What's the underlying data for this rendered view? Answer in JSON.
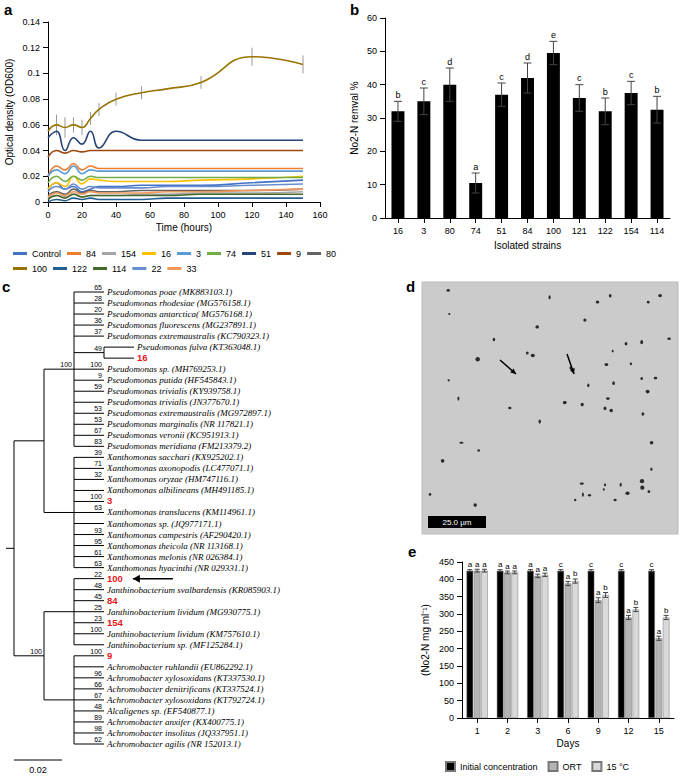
{
  "chart_data": [
    {
      "panel": "a",
      "type": "line",
      "x_label": "Time (hours)",
      "y_label": "Optical density (OD600)",
      "xlim": [
        0,
        160
      ],
      "xticks": [
        0,
        20,
        40,
        60,
        80,
        100,
        120,
        140,
        160
      ],
      "ylim": [
        0,
        0.14
      ],
      "yticks": [
        0,
        0.02,
        0.04,
        0.06,
        0.08,
        0.1,
        0.12,
        0.14
      ],
      "grid": false,
      "legend": "bottom",
      "line_style": "smooth",
      "x": [
        0,
        5,
        10,
        15,
        20,
        25,
        30,
        40,
        55,
        70,
        90,
        120,
        150
      ],
      "series": [
        {
          "name": "Control",
          "color": "#4472c4",
          "values": [
            0.01,
            0.015,
            0.01,
            0.012,
            0.008,
            0.01,
            0.012,
            0.012,
            0.013,
            0.013,
            0.013,
            0.015,
            0.017
          ]
        },
        {
          "name": "84",
          "color": "#ed7d31",
          "values": [
            0.02,
            0.028,
            0.025,
            0.03,
            0.025,
            0.028,
            0.026,
            0.026,
            0.026,
            0.026,
            0.026,
            0.026,
            0.026
          ]
        },
        {
          "name": "154",
          "color": "#a5a5a5",
          "values": [
            0.003,
            0.005,
            0.004,
            0.006,
            0.004,
            0.005,
            0.005,
            0.005,
            0.006,
            0.006,
            0.007,
            0.007,
            0.008
          ]
        },
        {
          "name": "16",
          "color": "#ffc000",
          "values": [
            0.01,
            0.015,
            0.012,
            0.02,
            0.014,
            0.018,
            0.017,
            0.016,
            0.016,
            0.016,
            0.017,
            0.018,
            0.02
          ]
        },
        {
          "name": "3",
          "color": "#5b9bd5",
          "values": [
            0.02,
            0.025,
            0.022,
            0.028,
            0.022,
            0.025,
            0.024,
            0.024,
            0.024,
            0.024,
            0.024,
            0.024,
            0.024
          ]
        },
        {
          "name": "74",
          "color": "#70ad47",
          "values": [
            0.015,
            0.02,
            0.016,
            0.02,
            0.017,
            0.02,
            0.019,
            0.019,
            0.019,
            0.019,
            0.019,
            0.019,
            0.019
          ]
        },
        {
          "name": "51",
          "color": "#264478",
          "values": [
            0.05,
            0.055,
            0.04,
            0.05,
            0.045,
            0.055,
            0.042,
            0.055,
            0.048,
            0.048,
            0.048,
            0.048,
            0.048
          ]
        },
        {
          "name": "9",
          "color": "#9e480e",
          "values": [
            0.035,
            0.04,
            0.038,
            0.04,
            0.039,
            0.04,
            0.04,
            0.04,
            0.04,
            0.04,
            0.04,
            0.04,
            0.04
          ]
        },
        {
          "name": "80",
          "color": "#636363",
          "values": [
            0.005,
            0.008,
            0.006,
            0.01,
            0.007,
            0.009,
            0.008,
            0.008,
            0.009,
            0.009,
            0.009,
            0.009,
            0.01
          ]
        },
        {
          "name": "100",
          "color": "#997300",
          "values": [
            0.055,
            0.06,
            0.058,
            0.06,
            0.058,
            0.065,
            0.072,
            0.08,
            0.085,
            0.088,
            0.093,
            0.113,
            0.107
          ],
          "errors": [
            0,
            0.008,
            0.008,
            0.006,
            0.006,
            0.005,
            0.005,
            0.005,
            0.005,
            0,
            0.005,
            0.007,
            0.007
          ]
        },
        {
          "name": "122",
          "color": "#255e91",
          "values": [
            0,
            0.002,
            0.001,
            0.003,
            0.002,
            0.003,
            0.002,
            0.002,
            0.002,
            0.003,
            0.003,
            0.003,
            0.003
          ]
        },
        {
          "name": "114",
          "color": "#43682b",
          "values": [
            0.002,
            0.005,
            0.003,
            0.006,
            0.004,
            0.005,
            0.005,
            0.005,
            0.005,
            0.005,
            0.006,
            0.006,
            0.006
          ]
        },
        {
          "name": "22",
          "color": "#698ed0",
          "values": [
            0.008,
            0.012,
            0.01,
            0.014,
            0.01,
            0.012,
            0.011,
            0.011,
            0.011,
            0.012,
            0.012,
            0.013,
            0.014
          ]
        },
        {
          "name": "33",
          "color": "#f1975a",
          "values": [
            0.004,
            0.007,
            0.005,
            0.008,
            0.006,
            0.008,
            0.007,
            0.007,
            0.007,
            0.008,
            0.008,
            0.009,
            0.01
          ]
        }
      ]
    },
    {
      "panel": "b",
      "type": "bar",
      "x_label": "Isolated strains",
      "y_label": "No2-N remval %",
      "categories": [
        "16",
        "3",
        "80",
        "74",
        "51",
        "84",
        "100",
        "121",
        "122",
        "154",
        "114"
      ],
      "values": [
        32,
        35,
        40,
        10.5,
        37,
        42,
        49.5,
        36,
        32,
        37.5,
        32.5
      ],
      "errors": [
        3,
        4,
        5,
        3,
        3.5,
        4.5,
        3.5,
        4,
        4,
        3.5,
        4
      ],
      "annotations": [
        "b",
        "c",
        "d",
        "a",
        "c",
        "d",
        "e",
        "c",
        "b",
        "c",
        "b"
      ],
      "color": "#000000",
      "ylim": [
        0,
        60
      ],
      "yticks": [
        0,
        10,
        20,
        30,
        40,
        50,
        60
      ],
      "grid": false
    },
    {
      "panel": "e",
      "type": "bar",
      "x_label": "Days",
      "y_label": "(No2-N mg ml⁻¹)",
      "categories": [
        "1",
        "2",
        "3",
        "6",
        "9",
        "12",
        "15"
      ],
      "ylim": [
        0,
        450
      ],
      "yticks": [
        0,
        50,
        100,
        150,
        200,
        250,
        300,
        350,
        400,
        450
      ],
      "grid": false,
      "legend": "bottom",
      "series": [
        {
          "name": "Initial concentration",
          "color": "#000000",
          "values": [
            425,
            425,
            425,
            425,
            425,
            425,
            425
          ],
          "errors": [
            3,
            3,
            3,
            3,
            3,
            3,
            3
          ],
          "annotations": [
            "a",
            "a",
            "a",
            "c",
            "c",
            "c",
            "c"
          ]
        },
        {
          "name": "ORT",
          "color": "#b4b4b4",
          "values": [
            425,
            420,
            410,
            388,
            340,
            290,
            230
          ],
          "errors": [
            4,
            4,
            5,
            6,
            7,
            6,
            6
          ],
          "annotations": [
            "a",
            "a",
            "a",
            "a",
            "a",
            "a",
            "a"
          ]
        },
        {
          "name": "15 °C",
          "color": "#d9d9d9",
          "values": [
            425,
            420,
            413,
            395,
            355,
            313,
            290
          ],
          "errors": [
            4,
            4,
            5,
            6,
            7,
            6,
            6
          ],
          "annotations": [
            "a",
            "a",
            "a",
            "b",
            "b",
            "b",
            "b"
          ]
        }
      ]
    }
  ],
  "tree": {
    "panel": "c",
    "scale_bar": 0.02,
    "root": {
      "children": [
        {
          "children": [
            {
              "support": 100,
              "children": [
                {
                  "label": "Pseudomonas poae (MK883103.1)",
                  "support": 65
                },
                {
                  "label": "Pseudomonas rhodesiae (MG576158.1)",
                  "support": 28
                },
                {
                  "label": "Pseudomonas antarctica( MG576168.1)",
                  "support": 20
                },
                {
                  "label": "Pseudomonas fluorescens (MG237891.1)",
                  "support": 36
                },
                {
                  "label": "Pseudomonas extremaustralis (KC790323.1)",
                  "support": 37
                },
                {
                  "support": 49,
                  "children": [
                    {
                      "label": "Pseudomonas fulva (KT363048.1)"
                    },
                    {
                      "label": "16",
                      "color": "#e31a1c"
                    }
                  ]
                },
                {
                  "label": "Pseudomonas sp. (MH769253.1)",
                  "support": 100
                },
                {
                  "label": "Pseudomonas putida (HF545843.1)",
                  "support": 9
                },
                {
                  "label": "Pseudomonas trivialis (KY939758.1)",
                  "support": 59
                },
                {
                  "label": "Pseudomonas trivialis (JN377670.1)"
                },
                {
                  "label": "Pseudomonas extremaustralis (MG972897.1)",
                  "support": 53
                },
                {
                  "label": "Pseudomonas marginalis (NR 117821.1)",
                  "support": 53
                },
                {
                  "label": "Pseudomonas veronii (KC951913.1)",
                  "support": 67
                },
                {
                  "label": "Pseudomonas meridiana (FM213379.2)",
                  "support": 83
                }
              ]
            },
            {
              "children": [
                {
                  "label": "Xanthomonas sacchari (KX925202.1)",
                  "support": 39
                },
                {
                  "label": "Xanthomonas axonopodis (LC477071.1)",
                  "support": 71
                },
                {
                  "label": "Xanthomonas oryzae (HM747116.1)",
                  "support": 32
                },
                {
                  "label": "Xanthomonas albilineans (MH491185.1)"
                },
                {
                  "label": "3",
                  "color": "#e31a1c",
                  "support": 100
                },
                {
                  "label": "Xanthomonas translucens (KM114961.1)",
                  "support": 63
                },
                {
                  "label": "Xanthomonas sp. (JQ977171.1)"
                },
                {
                  "label": "Xanthomonas campestris (AF290420.1)",
                  "support": 93
                },
                {
                  "label": "Xanthomonas theicola (NR 113168.1)",
                  "support": 95
                },
                {
                  "label": "Xanthomonas melonis (NR 026384.1)",
                  "support": 61
                },
                {
                  "label": "Xanthomonas hyacinthi (NR 029331.1)",
                  "support": 63
                }
              ]
            }
          ]
        },
        {
          "support": 100,
          "children": [
            {
              "children": [
                {
                  "label": "100",
                  "color": "#e31a1c",
                  "marker": "arrow",
                  "support": 22
                },
                {
                  "label": "Janthinobacterium svalbardensis (KR085903.1)",
                  "support": 48
                },
                {
                  "label": "84",
                  "color": "#e31a1c",
                  "support": 45
                },
                {
                  "label": "Janthinobacterium lividum (MG930775.1)",
                  "support": 25
                },
                {
                  "label": "154",
                  "color": "#e31a1c",
                  "support": 23
                },
                {
                  "label": "Janthinobacterium lividum (KM757610.1)",
                  "support": 100
                },
                {
                  "label": "Janthinobacterium sp. (MF125284.1)"
                }
              ]
            },
            {
              "children": [
                {
                  "label": "9",
                  "color": "#e31a1c",
                  "support": 100
                },
                {
                  "label": "Achromobacter ruhlandii (EU862292.1)"
                },
                {
                  "label": "Achromobacter xylosoxidans (KT337530.1)",
                  "support": 96
                },
                {
                  "label": "Achromobacter denitrificans (KT337524.1)",
                  "support": 66
                },
                {
                  "label": "Achromobacter xylosoxidans (KT792724.1)",
                  "support": 67
                },
                {
                  "label": "Alcaligenes sp. (EF540877.1)",
                  "support": 48
                },
                {
                  "label": "Achromobacter anxifer (KX400775.1)",
                  "support": 89
                },
                {
                  "label": "Achromobacter insolitus (JQ337951.1)",
                  "support": 98
                },
                {
                  "label": "Achromobacter agilis (NR 152013.1)",
                  "support": 62
                }
              ]
            }
          ]
        }
      ]
    }
  },
  "image": {
    "panel": "d",
    "scale_bar": "25.0 µm"
  }
}
